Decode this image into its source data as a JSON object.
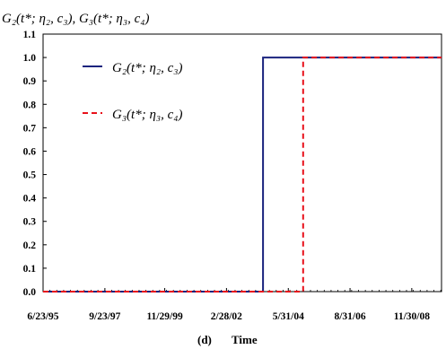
{
  "chart_data": {
    "type": "line",
    "title": "",
    "ylabel": "G₂(t*; η₂, c₃), G₃(t*; η₃, c₄)",
    "xlabel": "Time",
    "caption_tag": "(d)",
    "xlim": [
      "1995-06-23",
      "2009-12-31"
    ],
    "ylim": [
      0,
      1.1
    ],
    "ytick_labels": [
      "0.0",
      "0.1",
      "0.2",
      "0.3",
      "0.4",
      "0.5",
      "0.6",
      "0.7",
      "0.8",
      "0.9",
      "1.0",
      "1.1"
    ],
    "yticks": [
      0,
      0.1,
      0.2,
      0.3,
      0.4,
      0.5,
      0.6,
      0.7,
      0.8,
      0.9,
      1.0,
      1.1
    ],
    "xticks": [
      "1995-06-23",
      "1997-09-23",
      "1999-11-29",
      "2002-02-28",
      "2004-05-31",
      "2006-08-31",
      "2008-11-30"
    ],
    "xtick_labels": [
      "6/23/95",
      "9/23/97",
      "11/29/99",
      "2/28/02",
      "5/31/04",
      "8/31/06",
      "11/30/08"
    ],
    "grid": false,
    "legend_position": "top-left",
    "series": [
      {
        "name": "G₂(t*; η₂, c₃)",
        "color": "#1a237e",
        "style": "solid",
        "x": [
          "1995-06-23",
          "2003-06-30",
          "2003-06-30",
          "2009-12-31"
        ],
        "y": [
          0,
          0,
          1,
          1
        ]
      },
      {
        "name": "G₃(t*; η₃, c₄)",
        "color": "#e8101a",
        "style": "dashed",
        "x": [
          "1995-06-23",
          "2004-12-15",
          "2004-12-15",
          "2009-12-31"
        ],
        "y": [
          0,
          0,
          1,
          1
        ]
      }
    ]
  }
}
